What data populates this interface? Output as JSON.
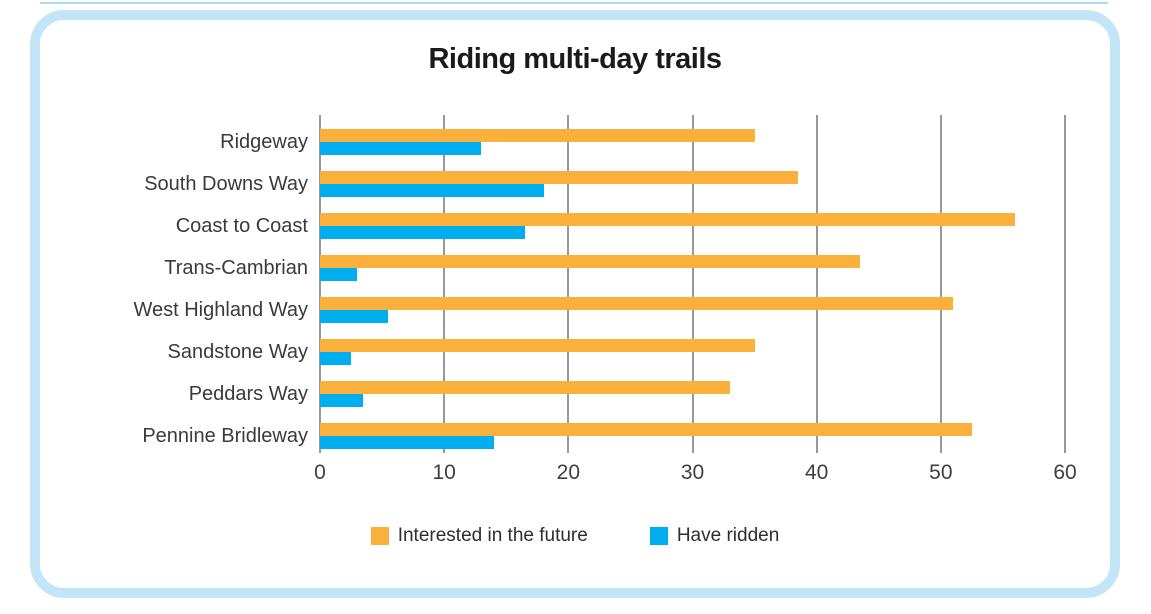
{
  "card": {
    "title": "Riding multi-day trails"
  },
  "colors": {
    "card_border": "#c3e5f7",
    "top_line": "#abdcf4",
    "gridline": "#97999c",
    "interested": "#fbb03b",
    "ridden": "#00aeef"
  },
  "chart_data": {
    "type": "bar",
    "orientation": "horizontal",
    "title": "Riding multi-day trails",
    "categories": [
      "Ridgeway",
      "South Downs Way",
      "Coast to Coast",
      "Trans-Cambrian",
      "West Highland Way",
      "Sandstone Way",
      "Peddars Way",
      "Pennine Bridleway"
    ],
    "series": [
      {
        "name": "Interested in the future",
        "color": "#fbb03b",
        "values": [
          35,
          38.5,
          56,
          43.5,
          51,
          35,
          33,
          52.5
        ]
      },
      {
        "name": "Have ridden",
        "color": "#00aeef",
        "values": [
          13,
          18,
          16.5,
          3,
          5.5,
          2.5,
          3.5,
          14
        ]
      }
    ],
    "xlim": [
      0,
      60
    ],
    "xticks": [
      0,
      10,
      20,
      30,
      40,
      50,
      60
    ],
    "grid": true,
    "legend_position": "bottom"
  }
}
